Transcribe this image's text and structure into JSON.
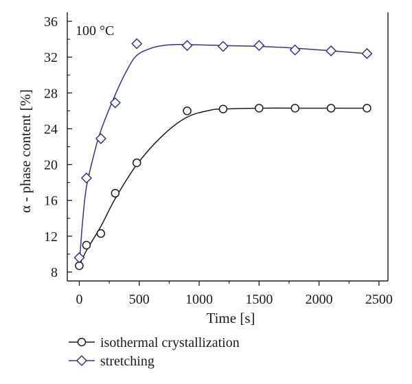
{
  "chart_data": {
    "type": "scatter",
    "annotation": "100 °C",
    "xlabel": "Time [s]",
    "ylabel": "α - phase content [%]",
    "xlim": [
      -100,
      2575
    ],
    "ylim": [
      7,
      37
    ],
    "x_ticks": [
      0,
      500,
      1000,
      1500,
      2000,
      2500
    ],
    "x_tick_labels": [
      "0",
      "500",
      "1000",
      "1500",
      "2000",
      "2500"
    ],
    "y_ticks": [
      8,
      12,
      16,
      20,
      24,
      28,
      32,
      36
    ],
    "y_tick_labels": [
      "8",
      "12",
      "16",
      "20",
      "24",
      "28",
      "32",
      "36"
    ],
    "grid": false,
    "legend_position": "below",
    "series": [
      {
        "name": "isothermal crystallization",
        "marker": "circle",
        "color": "#1a1a1a",
        "x": [
          0,
          60,
          180,
          300,
          480,
          900,
          1200,
          1500,
          1800,
          2100,
          2400
        ],
        "y": [
          8.7,
          11.0,
          12.3,
          16.8,
          20.2,
          26.0,
          26.2,
          26.3,
          26.3,
          26.3,
          26.3
        ],
        "fit_x": [
          0,
          60,
          180,
          300,
          480,
          700,
          900,
          1100,
          1200,
          1500,
          1800,
          2100,
          2400
        ],
        "fit_y": [
          8.7,
          10.4,
          13.1,
          16.2,
          20.0,
          23.3,
          25.3,
          26.1,
          26.2,
          26.3,
          26.3,
          26.3,
          26.3
        ]
      },
      {
        "name": "stretching",
        "marker": "diamond",
        "color": "#33338c",
        "x": [
          0,
          60,
          180,
          300,
          480,
          900,
          1200,
          1500,
          1800,
          2100,
          2400
        ],
        "y": [
          9.6,
          18.5,
          22.9,
          26.9,
          33.5,
          33.3,
          33.2,
          33.3,
          32.8,
          32.7,
          32.4
        ],
        "fit_x": [
          0,
          30,
          60,
          120,
          180,
          300,
          400,
          480,
          600,
          700,
          800,
          900,
          1200,
          1500,
          1800,
          2100,
          2400
        ],
        "fit_y": [
          8.8,
          14.0,
          17.5,
          21.0,
          23.8,
          27.8,
          30.6,
          32.2,
          33.0,
          33.3,
          33.4,
          33.4,
          33.3,
          33.2,
          33.0,
          32.7,
          32.4
        ]
      }
    ]
  }
}
